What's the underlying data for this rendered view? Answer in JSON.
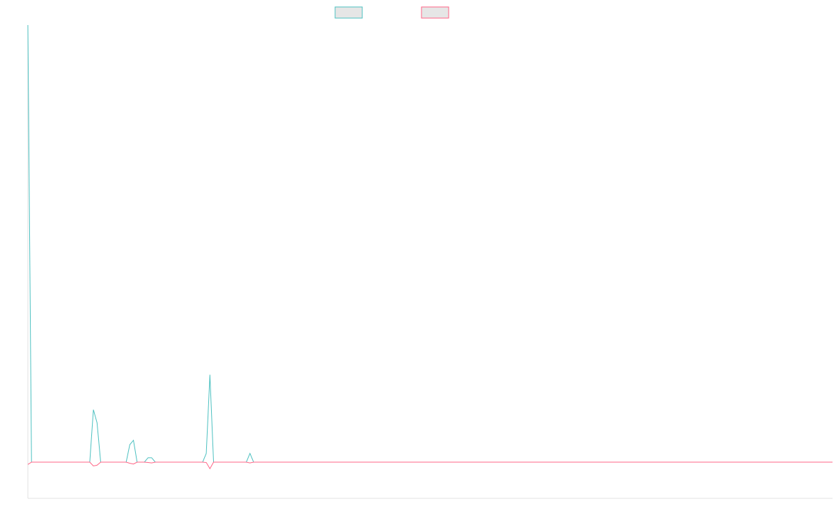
{
  "colors": {
    "background": "#ffffff",
    "axis": "#e0e0e0",
    "series_a": "#4bc0c0",
    "series_b": "#ff6384",
    "legend_fill": "#e6e6e6"
  },
  "chart_data": {
    "type": "line",
    "title": "",
    "xlabel": "",
    "ylabel": "",
    "grid": false,
    "legend_placement": "top",
    "x": [
      0,
      1,
      2,
      3,
      4,
      5,
      6,
      7,
      8,
      9,
      10,
      11,
      12,
      13,
      14,
      15,
      16,
      17,
      18,
      19,
      20,
      21,
      22,
      23,
      24,
      25,
      26,
      27,
      28,
      29,
      30,
      31,
      32,
      33,
      34,
      35,
      36,
      37,
      38,
      39,
      40,
      41,
      42,
      43,
      44,
      45,
      46,
      47,
      48,
      49,
      50,
      51,
      52,
      53,
      54,
      55,
      56,
      57,
      58,
      59,
      60,
      61,
      62,
      63,
      64,
      65,
      66,
      67,
      68,
      69,
      70,
      71,
      72,
      73,
      74,
      75,
      76,
      77,
      78,
      79,
      80,
      81,
      82,
      83,
      84,
      85,
      86,
      87,
      88,
      89,
      90,
      91,
      92,
      93,
      94,
      95,
      96,
      97,
      98,
      99,
      100,
      101,
      102,
      103,
      104,
      105,
      106,
      107,
      108,
      109,
      110,
      111,
      112,
      113,
      114,
      115,
      116,
      117,
      118,
      119,
      120,
      121,
      122,
      123,
      124,
      125,
      126,
      127,
      128,
      129,
      130,
      131,
      132,
      133,
      134,
      135,
      136,
      137,
      138,
      139,
      140,
      141,
      142,
      143,
      144,
      145,
      146,
      147,
      148,
      149,
      150,
      151,
      152,
      153,
      154,
      155,
      156,
      157,
      158,
      159,
      160,
      161,
      162,
      163,
      164,
      165,
      166,
      167,
      168,
      169,
      170,
      171,
      172,
      173,
      174,
      175,
      176,
      177,
      178,
      179,
      180,
      181,
      182,
      183,
      184,
      185,
      186,
      187,
      188,
      189,
      190,
      191,
      192,
      193,
      194,
      195,
      196,
      197,
      198,
      199,
      200,
      201,
      202,
      203,
      204,
      205,
      206,
      207,
      208,
      209,
      210,
      211,
      212,
      213,
      214,
      215,
      216,
      217,
      218,
      219,
      220,
      221
    ],
    "xlim": [
      0,
      221
    ],
    "ylim": [
      -1.02,
      1.0
    ],
    "series": [
      {
        "color_key": "series_a",
        "points": [
          [
            0,
            1.0
          ],
          [
            1,
            0
          ],
          [
            17,
            0
          ],
          [
            18,
            0.12
          ],
          [
            19,
            0.09
          ],
          [
            20,
            0
          ],
          [
            27,
            0
          ],
          [
            28,
            0.04
          ],
          [
            29,
            0.05
          ],
          [
            30,
            0
          ],
          [
            32,
            0
          ],
          [
            33,
            0.01
          ],
          [
            34,
            0.01
          ],
          [
            35,
            0
          ],
          [
            48,
            0
          ],
          [
            49,
            0.02
          ],
          [
            50,
            0.2
          ],
          [
            51,
            0
          ],
          [
            60,
            0
          ],
          [
            61,
            0.02
          ],
          [
            62,
            0
          ],
          [
            221,
            0
          ]
        ]
      },
      {
        "color_key": "series_b",
        "points": [
          [
            0,
            -0.06
          ],
          [
            1,
            0
          ],
          [
            17,
            0
          ],
          [
            18,
            -0.1
          ],
          [
            19,
            -0.08
          ],
          [
            20,
            0
          ],
          [
            27,
            0
          ],
          [
            28,
            -0.03
          ],
          [
            29,
            -0.05
          ],
          [
            30,
            0
          ],
          [
            32,
            0
          ],
          [
            33,
            -0.01
          ],
          [
            34,
            -0.02
          ],
          [
            35,
            0
          ],
          [
            48,
            0
          ],
          [
            49,
            -0.01
          ],
          [
            50,
            -0.17
          ],
          [
            51,
            0
          ],
          [
            60,
            0
          ],
          [
            61,
            -0.02
          ],
          [
            62,
            0
          ],
          [
            221,
            0
          ]
        ]
      }
    ]
  }
}
